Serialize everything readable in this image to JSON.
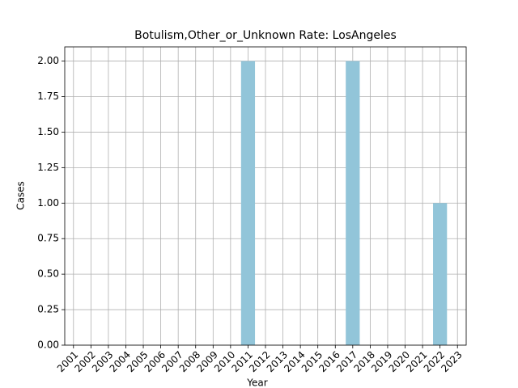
{
  "chart_data": {
    "type": "bar",
    "title": "Botulism,Other_or_Unknown Rate: LosAngeles",
    "xlabel": "Year",
    "ylabel": "Cases",
    "categories": [
      "2001",
      "2002",
      "2003",
      "2004",
      "2005",
      "2006",
      "2007",
      "2008",
      "2009",
      "2010",
      "2011",
      "2012",
      "2013",
      "2014",
      "2015",
      "2016",
      "2017",
      "2018",
      "2019",
      "2020",
      "2021",
      "2022",
      "2023"
    ],
    "values": [
      0,
      0,
      0,
      0,
      0,
      0,
      0,
      0,
      0,
      0,
      2,
      0,
      0,
      0,
      0,
      0,
      2,
      0,
      0,
      0,
      0,
      1,
      0
    ],
    "color": "#92c5d9",
    "ylim": [
      0,
      2.1
    ],
    "yticks": [
      {
        "value": 0,
        "label": "0.00"
      },
      0.25,
      {
        "value": 0.5,
        "label": "0.50"
      },
      0.75,
      {
        "value": 1,
        "label": "1.00"
      },
      1.25,
      {
        "value": 1.5,
        "label": "1.50"
      },
      1.75,
      {
        "value": 2,
        "label": "2.00"
      }
    ],
    "grid": true
  }
}
